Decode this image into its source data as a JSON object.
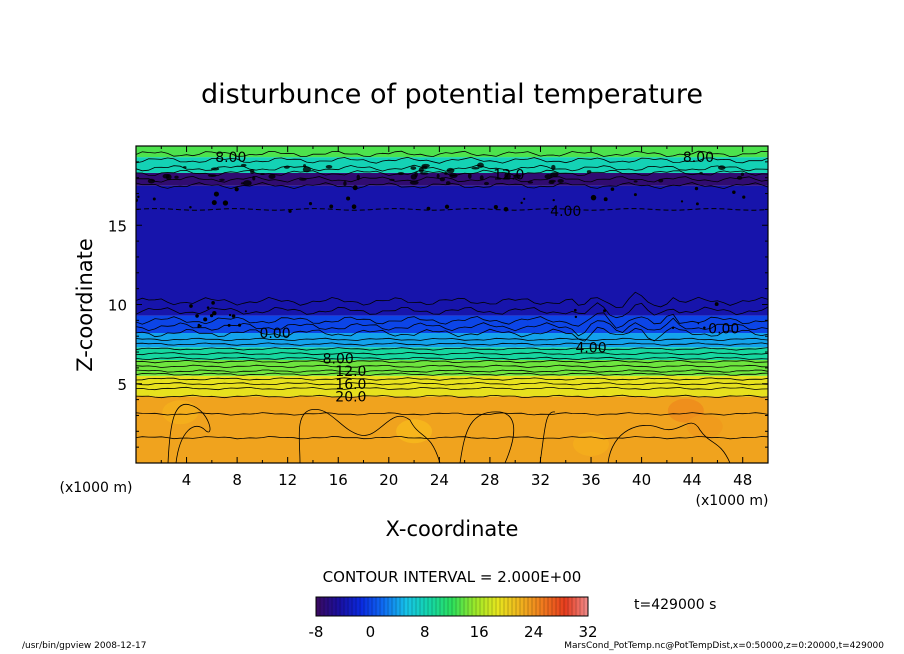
{
  "chart_data": {
    "type": "contour",
    "title": "disturbunce of potential temperature",
    "xlabel": "X-coordinate",
    "ylabel": "Z-coordinate",
    "x_unit": "(x1000 m)",
    "y_unit": "(x1000 m)",
    "xlim": [
      0,
      50
    ],
    "ylim": [
      0,
      20
    ],
    "x_ticks": [
      4,
      8,
      12,
      16,
      20,
      24,
      28,
      32,
      36,
      40,
      44,
      48
    ],
    "y_ticks": [
      5,
      10,
      15
    ],
    "contour_interval_text": "CONTOUR INTERVAL = 2.000E+00",
    "time_text": "t=429000 s",
    "colorbar": {
      "min": -8,
      "max": 32,
      "ticks": [
        -8,
        0,
        8,
        16,
        24,
        32
      ],
      "colors": [
        "#3b0a5e",
        "#1a0f9e",
        "#0a2ae0",
        "#0f6ef2",
        "#16c4e8",
        "#14d6a8",
        "#2ce05c",
        "#9ae82a",
        "#e6e61e",
        "#f0b41e",
        "#f07a1e",
        "#e63c1e",
        "#f08c8c"
      ]
    },
    "layers": [
      {
        "z_bottom": 0,
        "z_top": 4.2,
        "value": 23
      },
      {
        "z_bottom": 4.2,
        "z_top": 5.5,
        "value": 19
      },
      {
        "z_bottom": 5.5,
        "z_top": 6.5,
        "value": 14
      },
      {
        "z_bottom": 6.5,
        "z_top": 7.3,
        "value": 9
      },
      {
        "z_bottom": 7.3,
        "z_top": 8.2,
        "value": 4
      },
      {
        "z_bottom": 8.2,
        "z_top": 9.3,
        "value": 0
      },
      {
        "z_bottom": 9.3,
        "z_top": 17.5,
        "value": -4
      },
      {
        "z_bottom": 17.5,
        "z_top": 18.3,
        "value": -7
      },
      {
        "z_bottom": 18.3,
        "z_top": 19.3,
        "value": 8
      },
      {
        "z_bottom": 19.3,
        "z_top": 20,
        "value": 13
      }
    ],
    "contour_labels": [
      {
        "text": "8.00",
        "x": 7.5,
        "y": 19.3
      },
      {
        "text": "8.00",
        "x": 44.5,
        "y": 19.3
      },
      {
        "text": "12.0",
        "x": 29.5,
        "y": 18.2
      },
      {
        "text": "4.00",
        "x": 34,
        "y": 15.9
      },
      {
        "text": "0.00",
        "x": 11,
        "y": 8.2
      },
      {
        "text": "0.00",
        "x": 46.5,
        "y": 8.5
      },
      {
        "text": "4.00",
        "x": 36,
        "y": 7.3
      },
      {
        "text": "8.00",
        "x": 16,
        "y": 6.6
      },
      {
        "text": "12.0",
        "x": 17,
        "y": 5.8
      },
      {
        "text": "16.0",
        "x": 17,
        "y": 5.0
      },
      {
        "text": "20.0",
        "x": 17,
        "y": 4.2
      }
    ]
  },
  "footer": {
    "left": "/usr/bin/gpview  2008-12-17",
    "right": "MarsCond_PotTemp.nc@PotTempDist,x=0:50000,z=0:20000,t=429000"
  }
}
